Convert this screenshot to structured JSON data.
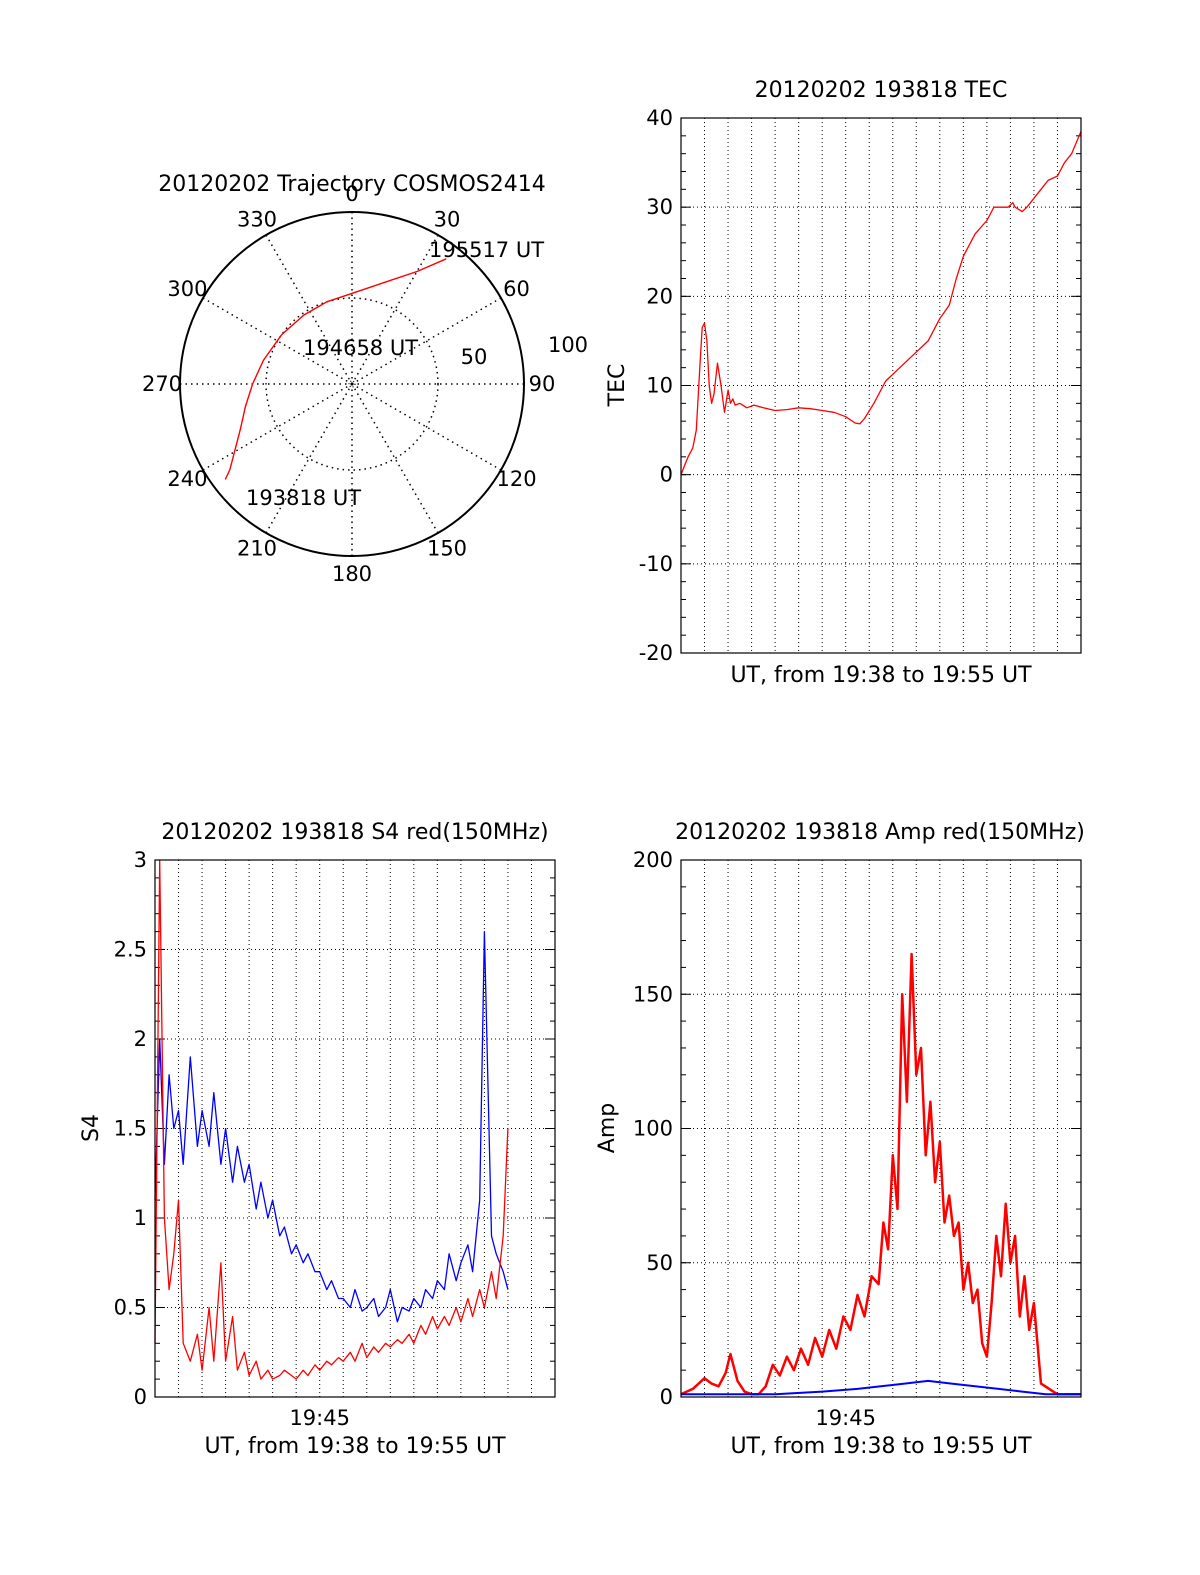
{
  "charts": [
    {
      "type": "polar_trajectory",
      "title": "20120202 Trajectory COSMOS2414",
      "azimuth_labels": [
        "0",
        "30",
        "60",
        "90",
        "120",
        "150",
        "180",
        "210",
        "240",
        "270",
        "300",
        "330"
      ],
      "radial_labels": [
        "50",
        "100"
      ],
      "start_label": "193818 UT",
      "mid_label": "194658 UT",
      "end_label": "195517 UT",
      "colors": {
        "track": "#ff0000",
        "grid": "#000000"
      }
    },
    {
      "type": "line",
      "title": "20120202 193818 TEC",
      "xlabel": "UT, from 19:38 to 19:55 UT",
      "ylabel": "TEC",
      "ylim": [
        -20,
        40
      ],
      "y_ticks": [
        "-20",
        "-10",
        "0",
        "10",
        "20",
        "30",
        "40"
      ],
      "x_tick_labels": [],
      "grid": true
    },
    {
      "type": "line",
      "title": "20120202 193818 S4 red(150MHz)",
      "xlabel": "UT, from 19:38 to 19:55 UT",
      "ylabel": "S4",
      "ylim": [
        0,
        3
      ],
      "y_ticks": [
        "0",
        "0.5",
        "1",
        "1.5",
        "2",
        "2.5",
        "3"
      ],
      "x_tick_labels": [
        "19:45"
      ],
      "grid": true
    },
    {
      "type": "line",
      "title": "20120202 193818 Amp red(150MHz)",
      "xlabel": "UT, from 19:38 to 19:55 UT",
      "ylabel": "Amp",
      "ylim": [
        0,
        200
      ],
      "y_ticks": [
        "0",
        "50",
        "100",
        "150",
        "200"
      ],
      "x_tick_labels": [
        "19:45"
      ],
      "grid": true
    }
  ],
  "chart_data": [
    {
      "type": "scatter",
      "title": "20120202 Trajectory COSMOS2414",
      "note_axes": "azimuth (deg) vs elevation (deg)",
      "series": [
        {
          "name": "",
          "color": "#ff0000",
          "x": [
            233,
            235,
            240,
            248,
            258,
            270,
            285,
            305,
            325,
            343,
            2,
            18,
            30,
            37
          ],
          "y": [
            7,
            12,
            19,
            27,
            33,
            38,
            42,
            45,
            46,
            45,
            42,
            34,
            22,
            8
          ]
        }
      ]
    },
    {
      "type": "line",
      "title": "20120202 193818 TEC",
      "xlim": [
        0,
        17
      ],
      "ylim": [
        -20,
        40
      ],
      "series": [
        {
          "name": "",
          "color": "#ff0000",
          "x": [
            0.0,
            0.15,
            0.3,
            0.5,
            0.65,
            0.8,
            0.9,
            1.0,
            1.1,
            1.2,
            1.3,
            1.4,
            1.55,
            1.7,
            1.85,
            2.0,
            2.1,
            2.2,
            2.3,
            2.5,
            2.8,
            3.1,
            3.5,
            4.0,
            4.5,
            5.0,
            5.5,
            6.0,
            6.5,
            7.0,
            7.4,
            7.6,
            7.8,
            8.2,
            8.7,
            9.3,
            9.9,
            10.5,
            11.0,
            11.4,
            11.7,
            12.0,
            12.5,
            13.0,
            13.3,
            13.6,
            13.9,
            14.1,
            14.2,
            14.5,
            14.7,
            15.0,
            15.3,
            15.6,
            16.0,
            16.3,
            16.6,
            17.0
          ],
          "y": [
            0.0,
            1.0,
            2.0,
            3.0,
            5.0,
            12.0,
            16.5,
            17.0,
            15.0,
            10.0,
            8.0,
            9.0,
            12.5,
            10.0,
            7.0,
            9.5,
            8.0,
            8.5,
            7.8,
            8.0,
            7.5,
            7.8,
            7.5,
            7.2,
            7.3,
            7.5,
            7.4,
            7.2,
            7.0,
            6.5,
            5.8,
            5.7,
            6.3,
            8.0,
            10.5,
            12.0,
            13.5,
            15.0,
            17.5,
            19.0,
            22.0,
            24.5,
            27.0,
            28.5,
            30.0,
            30.0,
            30.0,
            30.5,
            30.0,
            29.5,
            30.0,
            31.0,
            32.0,
            33.0,
            33.5,
            35.0,
            36.0,
            38.5
          ]
        }
      ]
    },
    {
      "type": "line",
      "title": "20120202 193818 S4 red(150MHz)",
      "xlim": [
        0,
        17
      ],
      "ylim": [
        0,
        3
      ],
      "x_tick_positions": [
        7
      ],
      "series": [
        {
          "name": "",
          "color": "#0000ff",
          "x": [
            0.0,
            0.2,
            0.4,
            0.6,
            0.8,
            1.0,
            1.2,
            1.5,
            1.8,
            2.0,
            2.3,
            2.5,
            2.8,
            3.0,
            3.3,
            3.5,
            3.8,
            4.0,
            4.3,
            4.5,
            4.8,
            5.0,
            5.3,
            5.5,
            5.8,
            6.0,
            6.3,
            6.5,
            6.8,
            7.0,
            7.3,
            7.5,
            7.8,
            8.0,
            8.3,
            8.5,
            8.8,
            9.0,
            9.3,
            9.5,
            9.8,
            10.0,
            10.3,
            10.5,
            10.8,
            11.0,
            11.3,
            11.5,
            11.8,
            12.0,
            12.3,
            12.5,
            12.8,
            13.0,
            13.3,
            13.5,
            13.8,
            14.0,
            14.3,
            14.5,
            14.8,
            15.0
          ],
          "y": [
            1.1,
            2.0,
            1.3,
            1.8,
            1.5,
            1.6,
            1.3,
            1.9,
            1.4,
            1.6,
            1.4,
            1.7,
            1.3,
            1.5,
            1.2,
            1.4,
            1.2,
            1.3,
            1.05,
            1.2,
            1.0,
            1.1,
            0.9,
            0.95,
            0.8,
            0.85,
            0.75,
            0.8,
            0.7,
            0.7,
            0.6,
            0.65,
            0.55,
            0.55,
            0.5,
            0.6,
            0.48,
            0.5,
            0.55,
            0.45,
            0.5,
            0.6,
            0.42,
            0.5,
            0.48,
            0.55,
            0.5,
            0.6,
            0.55,
            0.65,
            0.6,
            0.8,
            0.65,
            0.75,
            0.85,
            0.7,
            1.1,
            2.6,
            0.9,
            0.8,
            0.7,
            0.6
          ]
        },
        {
          "name": "",
          "color": "#ff0000",
          "x": [
            0.0,
            0.2,
            0.4,
            0.6,
            0.8,
            1.0,
            1.2,
            1.5,
            1.8,
            2.0,
            2.3,
            2.5,
            2.8,
            3.0,
            3.3,
            3.5,
            3.8,
            4.0,
            4.3,
            4.5,
            4.8,
            5.0,
            5.3,
            5.5,
            5.8,
            6.0,
            6.3,
            6.5,
            6.8,
            7.0,
            7.3,
            7.5,
            7.8,
            8.0,
            8.3,
            8.5,
            8.8,
            9.0,
            9.3,
            9.5,
            9.8,
            10.0,
            10.3,
            10.5,
            10.8,
            11.0,
            11.3,
            11.5,
            11.8,
            12.0,
            12.3,
            12.5,
            12.8,
            13.0,
            13.3,
            13.5,
            13.8,
            14.0,
            14.3,
            14.5,
            14.8,
            15.0
          ],
          "y": [
            0.3,
            3.0,
            1.0,
            0.6,
            0.8,
            1.1,
            0.3,
            0.2,
            0.35,
            0.15,
            0.5,
            0.2,
            0.75,
            0.2,
            0.45,
            0.15,
            0.25,
            0.12,
            0.2,
            0.1,
            0.15,
            0.1,
            0.12,
            0.15,
            0.12,
            0.1,
            0.15,
            0.12,
            0.18,
            0.15,
            0.2,
            0.18,
            0.22,
            0.2,
            0.25,
            0.2,
            0.3,
            0.22,
            0.28,
            0.25,
            0.3,
            0.28,
            0.32,
            0.3,
            0.35,
            0.3,
            0.4,
            0.35,
            0.45,
            0.38,
            0.45,
            0.4,
            0.5,
            0.42,
            0.55,
            0.45,
            0.6,
            0.5,
            0.7,
            0.55,
            0.9,
            1.5
          ]
        }
      ]
    },
    {
      "type": "line",
      "title": "20120202 193818 Amp red(150MHz)",
      "xlim": [
        0,
        17
      ],
      "ylim": [
        0,
        200
      ],
      "x_tick_positions": [
        7
      ],
      "series": [
        {
          "name": "",
          "color": "#ff0000",
          "x": [
            0.0,
            0.5,
            1.0,
            1.3,
            1.6,
            1.9,
            2.1,
            2.4,
            2.7,
            3.0,
            3.3,
            3.6,
            3.9,
            4.2,
            4.5,
            4.8,
            5.1,
            5.4,
            5.7,
            6.0,
            6.3,
            6.6,
            6.9,
            7.2,
            7.5,
            7.8,
            8.1,
            8.4,
            8.6,
            8.8,
            9.0,
            9.2,
            9.4,
            9.6,
            9.8,
            10.0,
            10.2,
            10.4,
            10.6,
            10.8,
            11.0,
            11.2,
            11.4,
            11.6,
            11.8,
            12.0,
            12.2,
            12.4,
            12.6,
            12.8,
            13.0,
            13.2,
            13.4,
            13.6,
            13.8,
            14.0,
            14.2,
            14.4,
            14.6,
            14.8,
            15.0,
            15.3,
            16.0,
            17.0
          ],
          "y": [
            1,
            3,
            7,
            5,
            4,
            9,
            16,
            6,
            2,
            1,
            1,
            4,
            12,
            8,
            15,
            10,
            18,
            12,
            22,
            15,
            25,
            18,
            30,
            25,
            38,
            30,
            45,
            42,
            65,
            55,
            90,
            70,
            150,
            110,
            165,
            120,
            130,
            90,
            110,
            80,
            95,
            65,
            75,
            60,
            65,
            40,
            50,
            35,
            40,
            20,
            15,
            35,
            60,
            45,
            72,
            50,
            60,
            30,
            45,
            25,
            35,
            5,
            1,
            1
          ]
        },
        {
          "name": "",
          "color": "#0000ff",
          "x": [
            0.0,
            2.0,
            4.0,
            6.0,
            7.5,
            8.5,
            9.5,
            10.5,
            11.5,
            12.5,
            13.5,
            14.5,
            15.5,
            17.0
          ],
          "y": [
            1,
            1,
            1,
            2,
            3,
            4,
            5,
            6,
            5,
            4,
            3,
            2,
            1,
            1
          ]
        }
      ]
    }
  ]
}
